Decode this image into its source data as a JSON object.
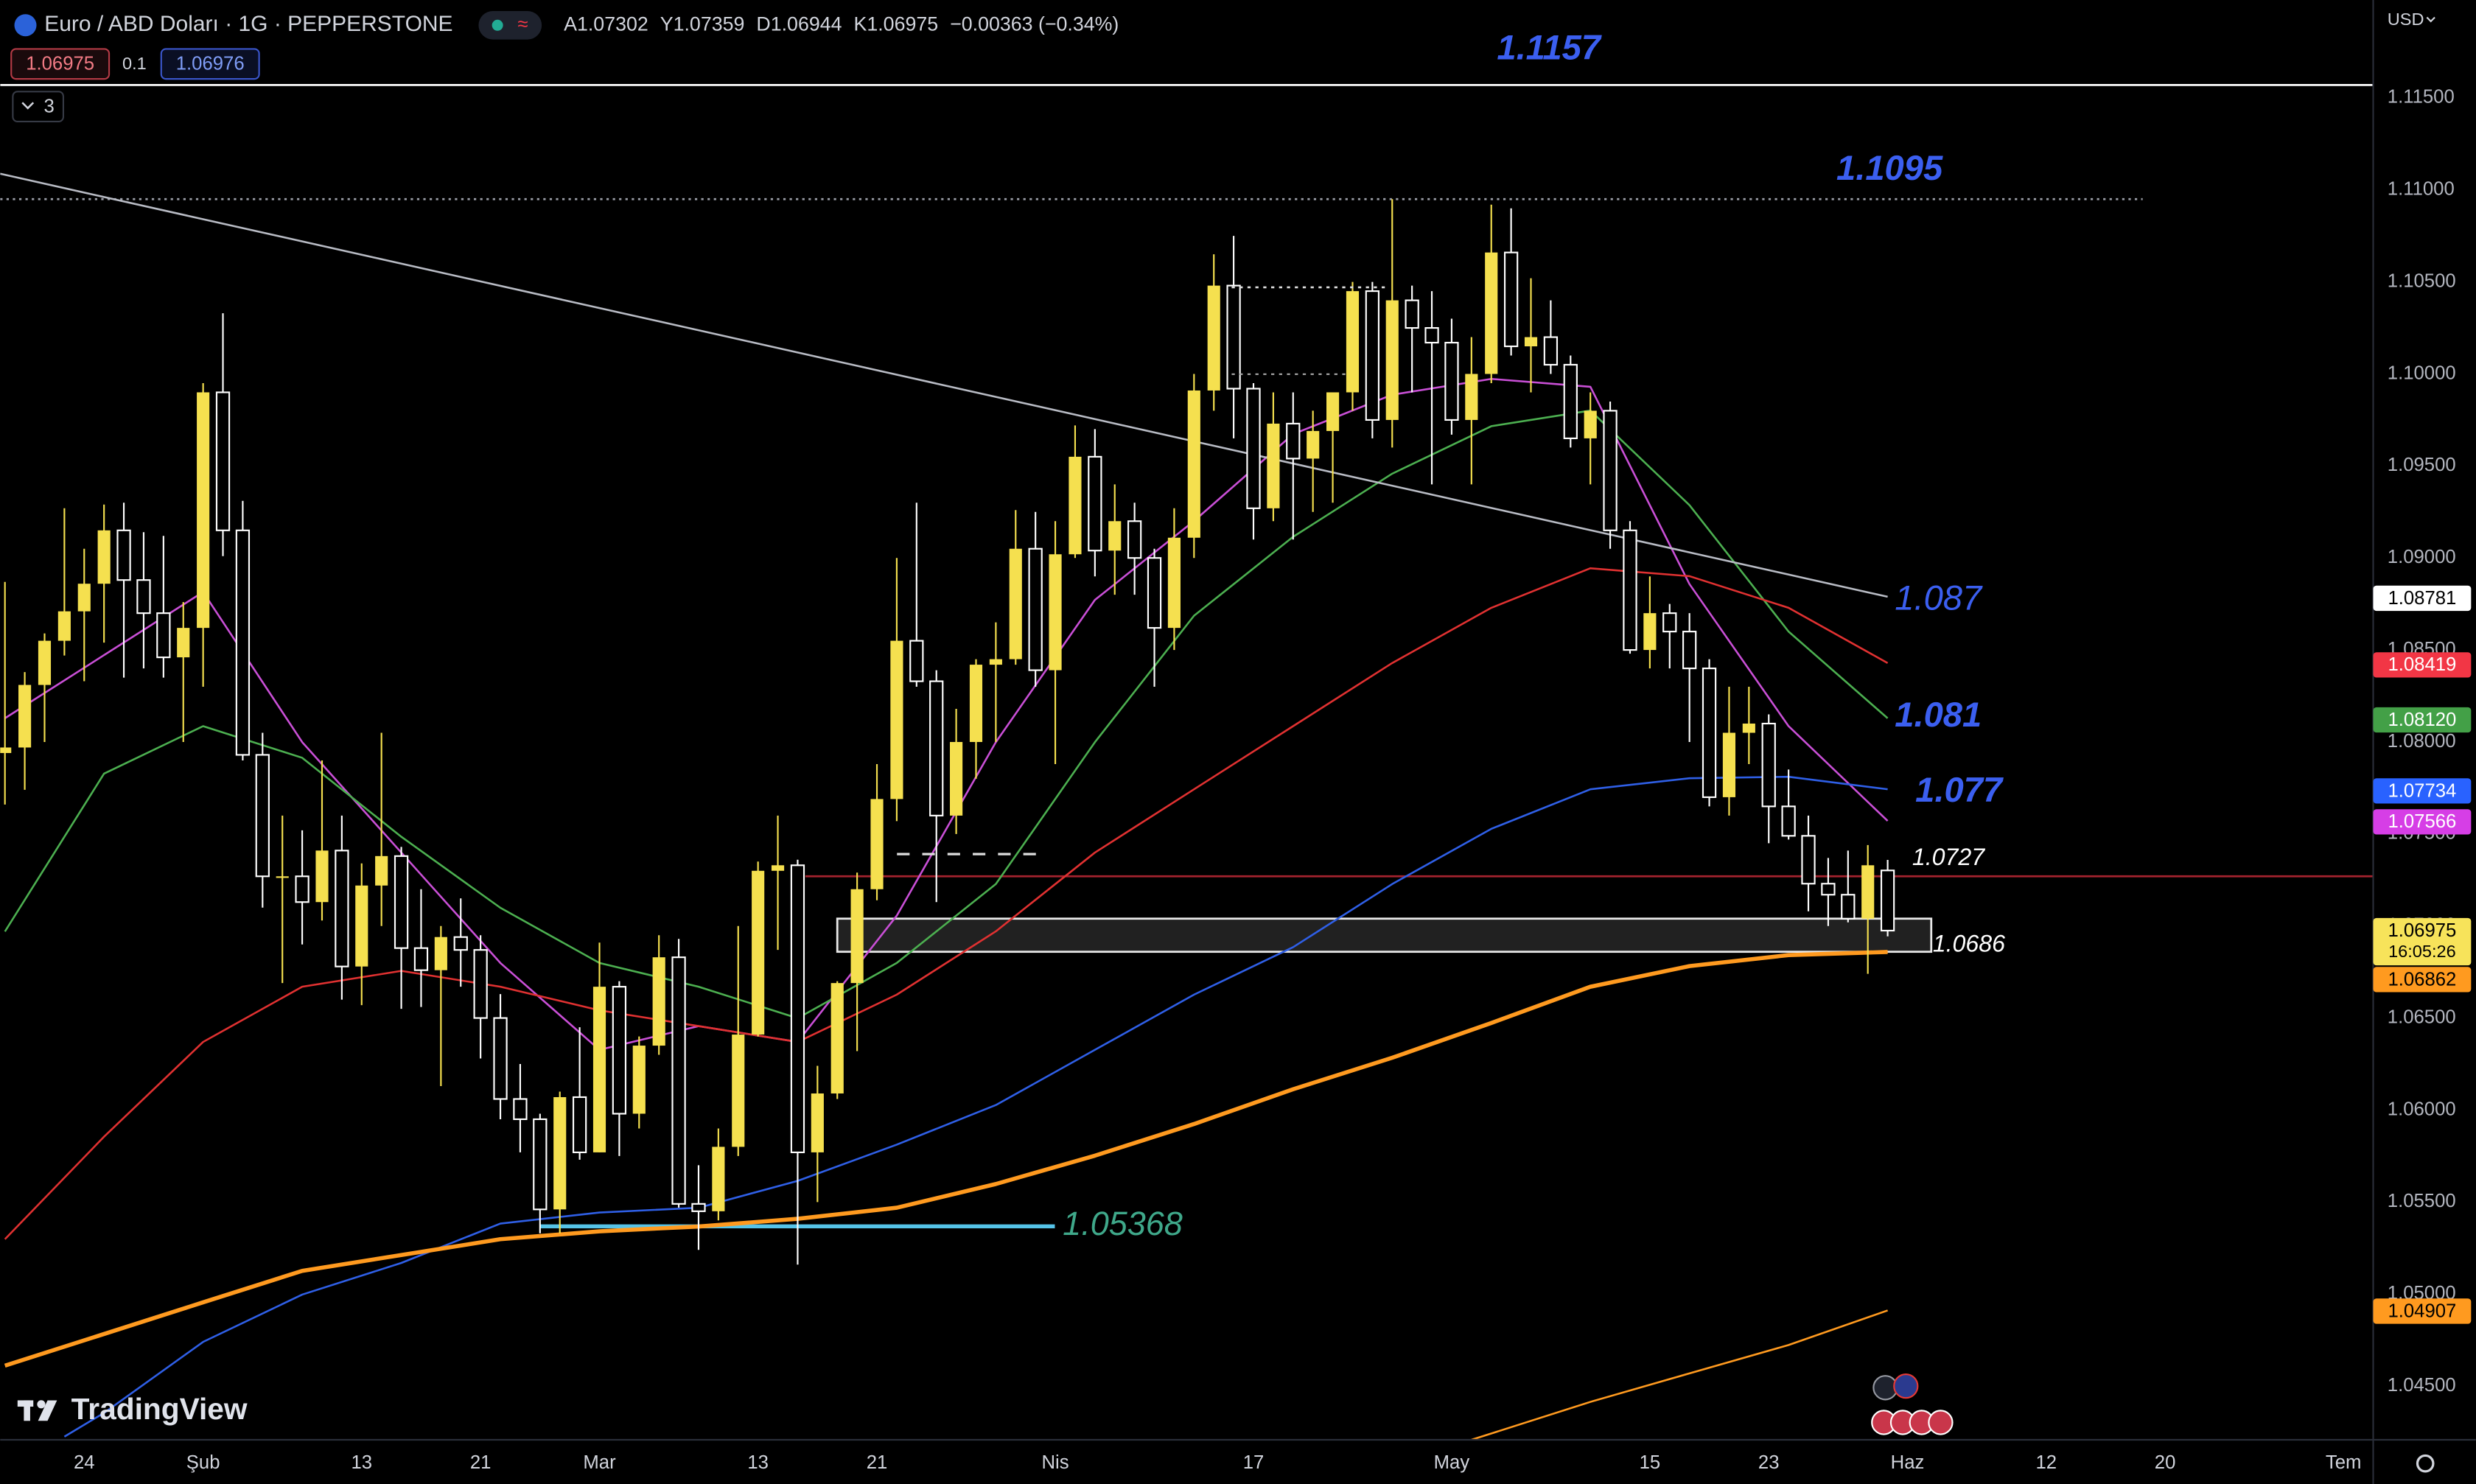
{
  "header": {
    "symbol": "Euro / ABD Doları · 1G · PEPPERSTONE",
    "ohlc": [
      {
        "key": "A",
        "value": 1.07302
      },
      {
        "key": "Y",
        "value": 1.07359
      },
      {
        "key": "D",
        "value": 1.06944
      },
      {
        "key": "K",
        "value": 1.06975
      }
    ],
    "change": "−0.00363 (−0.34%)",
    "sell": 1.06975,
    "spread": 0.1,
    "buy": 1.06976,
    "indicators": 3,
    "currency": "USD",
    "logo": "TradingView",
    "countdown": "16:05:26"
  },
  "chart_data": {
    "type": "candlestick",
    "up_color": "#f5e04f",
    "down_color": "#ffffff",
    "xlim": [
      -0.24,
      119.5
    ],
    "ylim": [
      1.04208,
      1.12032
    ],
    "x": [
      0,
      1,
      2,
      3,
      4,
      5,
      6,
      7,
      8,
      9,
      10,
      11,
      12,
      13,
      14,
      15,
      16,
      17,
      18,
      19,
      20,
      21,
      22,
      23,
      24,
      25,
      26,
      27,
      28,
      29,
      30,
      31,
      32,
      33,
      34,
      35,
      36,
      37,
      38,
      39,
      40,
      41,
      42,
      43,
      44,
      45,
      46,
      47,
      48,
      49,
      50,
      51,
      52,
      53,
      54,
      55,
      56,
      57,
      58,
      59,
      60,
      61,
      62,
      63,
      64,
      65,
      66,
      67,
      68,
      69,
      70,
      71,
      72,
      73,
      74,
      75,
      76,
      77,
      78,
      79,
      80,
      81,
      82,
      83,
      84,
      85,
      86,
      87,
      88,
      89,
      90,
      91,
      92,
      93,
      94,
      95
    ],
    "open": [
      1.0794,
      1.0797,
      1.0831,
      1.0855,
      1.0871,
      1.0886,
      1.0915,
      1.0888,
      1.087,
      1.0846,
      1.0862,
      1.099,
      1.0915,
      1.0793,
      1.0727,
      1.0727,
      1.0713,
      1.0741,
      1.0678,
      1.0722,
      1.0738,
      1.0688,
      1.0676,
      1.0694,
      1.0687,
      1.065,
      1.0606,
      1.0595,
      1.0546,
      1.0607,
      1.0577,
      1.0667,
      1.0598,
      1.0635,
      1.0683,
      1.0549,
      1.0545,
      1.058,
      1.0641,
      1.073,
      1.0733,
      1.0577,
      1.0609,
      1.0669,
      1.072,
      1.0769,
      1.0855,
      1.0833,
      1.076,
      1.08,
      1.0842,
      1.0845,
      1.0905,
      1.0839,
      1.0902,
      1.0955,
      1.0904,
      1.092,
      1.09,
      1.0862,
      1.0911,
      1.0991,
      1.1048,
      1.0992,
      1.0927,
      1.0973,
      1.0954,
      1.0969,
      1.099,
      1.1045,
      1.0975,
      1.104,
      1.1025,
      1.1017,
      1.0975,
      1.1,
      1.1066,
      1.1015,
      1.102,
      1.1005,
      1.0965,
      1.098,
      1.0915,
      1.085,
      1.087,
      1.086,
      1.084,
      1.077,
      1.0805,
      1.081,
      1.0765,
      1.0749,
      1.0723,
      1.0717,
      1.0704,
      1.07302
    ],
    "high": [
      1.0887,
      1.0838,
      1.0859,
      1.0927,
      1.0905,
      1.0929,
      1.093,
      1.0914,
      1.0912,
      1.0876,
      1.0995,
      1.1033,
      1.0931,
      1.0805,
      1.076,
      1.0752,
      1.079,
      1.076,
      1.0734,
      1.0805,
      1.0743,
      1.072,
      1.07,
      1.0715,
      1.0695,
      1.0663,
      1.0625,
      1.0598,
      1.061,
      1.0645,
      1.0691,
      1.067,
      1.064,
      1.0695,
      1.0693,
      1.057,
      1.059,
      1.07,
      1.0735,
      1.076,
      1.0736,
      1.0624,
      1.067,
      1.0729,
      1.0788,
      1.09,
      1.093,
      1.0839,
      1.0818,
      1.0845,
      1.0865,
      1.0926,
      1.0925,
      1.092,
      1.0972,
      1.097,
      1.094,
      1.093,
      1.0905,
      1.0927,
      1.1,
      1.1065,
      1.1075,
      1.0995,
      1.099,
      1.099,
      1.098,
      1.099,
      1.105,
      1.105,
      1.1095,
      1.1048,
      1.1045,
      1.103,
      1.102,
      1.1092,
      1.109,
      1.1052,
      1.104,
      1.101,
      1.099,
      1.0985,
      1.092,
      1.089,
      1.0875,
      1.087,
      1.0845,
      1.083,
      1.083,
      1.0815,
      1.0785,
      1.076,
      1.0737,
      1.0741,
      1.0744,
      1.07359
    ],
    "low": [
      1.0766,
      1.0774,
      1.08,
      1.0847,
      1.0833,
      1.0854,
      1.0835,
      1.084,
      1.0835,
      1.08,
      1.083,
      1.0901,
      1.079,
      1.071,
      1.0669,
      1.069,
      1.0703,
      1.066,
      1.0657,
      1.07,
      1.0655,
      1.0656,
      1.0613,
      1.0667,
      1.0628,
      1.0595,
      1.0577,
      1.0533,
      1.0533,
      1.0573,
      1.0577,
      1.0575,
      1.059,
      1.063,
      1.0547,
      1.0524,
      1.054,
      1.0575,
      1.064,
      1.0687,
      1.0516,
      1.055,
      1.0606,
      1.0632,
      1.0714,
      1.0757,
      1.083,
      1.0713,
      1.075,
      1.078,
      1.08,
      1.0842,
      1.083,
      1.0788,
      1.09,
      1.089,
      1.088,
      1.088,
      1.083,
      1.085,
      1.09,
      1.098,
      1.0965,
      1.091,
      1.092,
      1.091,
      1.0925,
      1.093,
      1.098,
      1.0965,
      1.096,
      1.099,
      1.094,
      1.0967,
      1.094,
      1.0995,
      1.101,
      1.099,
      1.1,
      1.096,
      1.094,
      1.0905,
      1.0848,
      1.084,
      1.084,
      1.08,
      1.0765,
      1.076,
      1.0788,
      1.0745,
      1.0747,
      1.0708,
      1.07,
      1.0702,
      1.0674,
      1.06944
    ],
    "close": [
      1.0797,
      1.0831,
      1.0855,
      1.0871,
      1.0886,
      1.0915,
      1.0888,
      1.087,
      1.0846,
      1.0862,
      1.099,
      1.0915,
      1.0793,
      1.0727,
      1.0727,
      1.0713,
      1.0741,
      1.0678,
      1.0722,
      1.0738,
      1.0688,
      1.0676,
      1.0694,
      1.0687,
      1.065,
      1.0606,
      1.0595,
      1.0546,
      1.0607,
      1.0577,
      1.0667,
      1.0598,
      1.0635,
      1.0683,
      1.0549,
      1.0545,
      1.058,
      1.0641,
      1.073,
      1.0733,
      1.0577,
      1.0609,
      1.0669,
      1.072,
      1.0769,
      1.0855,
      1.0833,
      1.076,
      1.08,
      1.0842,
      1.0845,
      1.0905,
      1.0839,
      1.0902,
      1.0955,
      1.0904,
      1.092,
      1.09,
      1.0862,
      1.0911,
      1.0991,
      1.1048,
      1.0992,
      1.0927,
      1.0973,
      1.0954,
      1.0969,
      1.099,
      1.1045,
      1.0975,
      1.104,
      1.1025,
      1.1017,
      1.0975,
      1.1,
      1.1066,
      1.1015,
      1.102,
      1.1005,
      1.0965,
      1.098,
      1.0915,
      1.085,
      1.087,
      1.086,
      1.084,
      1.077,
      1.0805,
      1.081,
      1.0765,
      1.0749,
      1.0723,
      1.0717,
      1.0704,
      1.0733,
      1.06975
    ],
    "lines": [
      {
        "color": "#c94fd6",
        "width": 1.2,
        "x": [
          0,
          5,
          10,
          15,
          20,
          25,
          30,
          35,
          40,
          45,
          50,
          55,
          60,
          65,
          70,
          75,
          80,
          85,
          90,
          95
        ],
        "values": [
          1.08129,
          1.08472,
          1.08815,
          1.07999,
          1.07399,
          1.06799,
          1.06327,
          1.06456,
          1.0637,
          1.07056,
          1.07999,
          1.08772,
          1.09201,
          1.09673,
          1.09887,
          1.09973,
          1.0993,
          1.08858,
          1.08086,
          1.07571
        ]
      },
      {
        "color": "#4caf50",
        "width": 1.2,
        "x": [
          0,
          5,
          10,
          15,
          20,
          25,
          30,
          35,
          40,
          45,
          50,
          55,
          60,
          65,
          70,
          75,
          80,
          85,
          90,
          95
        ],
        "values": [
          1.0697,
          1.07828,
          1.08086,
          1.07914,
          1.07485,
          1.07099,
          1.06799,
          1.0667,
          1.06499,
          1.06799,
          1.07228,
          1.07999,
          1.08686,
          1.09115,
          1.09458,
          1.09716,
          1.09801,
          1.09287,
          1.086,
          1.08129
        ]
      },
      {
        "color": "#e03131",
        "width": 1.2,
        "x": [
          0,
          5,
          10,
          15,
          20,
          25,
          30,
          35,
          40,
          45,
          50,
          55,
          60,
          65,
          70,
          75,
          80,
          85,
          90,
          95
        ],
        "values": [
          1.05298,
          1.05855,
          1.0637,
          1.0667,
          1.06756,
          1.0667,
          1.06542,
          1.06456,
          1.0637,
          1.06627,
          1.06971,
          1.07399,
          1.07743,
          1.08086,
          1.08429,
          1.08729,
          1.08944,
          1.08901,
          1.08729,
          1.08429
        ]
      },
      {
        "color": "#2f5fe6",
        "width": 1.2,
        "x": [
          3,
          5,
          10,
          15,
          20,
          25,
          30,
          35,
          40,
          45,
          50,
          55,
          60,
          65,
          70,
          75,
          80,
          85,
          90,
          95
        ],
        "values": [
          1.04225,
          1.04354,
          1.0474,
          1.04997,
          1.05169,
          1.05383,
          1.05443,
          1.05469,
          1.05615,
          1.05812,
          1.06027,
          1.06327,
          1.06627,
          1.06885,
          1.07228,
          1.07528,
          1.07743,
          1.07803,
          1.07811,
          1.07743
        ]
      },
      {
        "color": "#ff9a1f",
        "width": 2.6,
        "x": [
          0,
          5,
          10,
          15,
          20,
          25,
          30,
          35,
          40,
          45,
          50,
          55,
          60,
          65,
          70,
          75,
          80,
          85,
          90,
          95
        ],
        "values": [
          1.04611,
          1.04783,
          1.04955,
          1.05126,
          1.05212,
          1.05298,
          1.05341,
          1.05367,
          1.05409,
          1.05469,
          1.05598,
          1.05752,
          1.05924,
          1.06113,
          1.06284,
          1.06473,
          1.0667,
          1.06782,
          1.06842,
          1.06859
        ]
      },
      {
        "color": "#ff9a1f",
        "width": 1.2,
        "x": [
          74,
          80,
          85,
          90,
          95
        ],
        "values": [
          1.04208,
          1.04414,
          1.04569,
          1.04723,
          1.04911
        ]
      },
      {
        "color": "#b8bbc4",
        "width": 1.2,
        "x": [
          -0.24,
          95
        ],
        "values": [
          1.11088,
          1.08789
        ]
      }
    ],
    "annotations": [
      {
        "value": 1.1157,
        "color": "#3b5ff0",
        "bold": true,
        "size": 22,
        "line": "solid",
        "line_color": "#ffffff"
      },
      {
        "value": 1.1095,
        "color": "#3b5ff0",
        "bold": true,
        "size": 22,
        "line": "dotted",
        "line_color": "#9a9da6"
      },
      {
        "value": 1.087,
        "color": "#3b5ff0",
        "bold": false,
        "size": 22
      },
      {
        "value": 1.081,
        "color": "#3b5ff0",
        "bold": true,
        "size": 22
      },
      {
        "value": 1.077,
        "color": "#3b5ff0",
        "bold": true,
        "size": 22
      },
      {
        "value": 1.0727,
        "color": "#ffffff",
        "bold": false,
        "size": 15,
        "line": "solid",
        "line_color": "#a3232e"
      },
      {
        "value": 1.0686,
        "color": "#ffffff",
        "bold": false,
        "size": 15
      },
      {
        "value": 1.05368,
        "color": "#3fa88a",
        "bold": false,
        "size": 21,
        "line": "solid",
        "line_color": "#55c3e8"
      }
    ],
    "zone": {
      "x": [
        42,
        97.2
      ],
      "top": 1.0704
    },
    "yticks": [
      {
        "value": 1.045,
        "label": "1.04500"
      },
      {
        "value": 1.05,
        "label": "1.05000"
      },
      {
        "value": 1.055,
        "label": "1.05500"
      },
      {
        "value": 1.06,
        "label": "1.06000"
      },
      {
        "value": 1.065,
        "label": "1.06500"
      },
      {
        "value": 1.07,
        "label": "1.07000"
      },
      {
        "value": 1.075,
        "label": "1.07500"
      },
      {
        "value": 1.08,
        "label": "1.08000"
      },
      {
        "value": 1.085,
        "label": "1.08500"
      },
      {
        "value": 1.09,
        "label": "1.09000"
      },
      {
        "value": 1.095,
        "label": "1.09500"
      },
      {
        "value": 1.1,
        "label": "1.10000"
      },
      {
        "value": 1.105,
        "label": "1.10500"
      },
      {
        "value": 1.11,
        "label": "1.11000"
      },
      {
        "value": 1.115,
        "label": "1.11500"
      }
    ],
    "xticks": [
      {
        "value": 4,
        "label": "24"
      },
      {
        "value": 10,
        "label": "Şub"
      },
      {
        "value": 18,
        "label": "13"
      },
      {
        "value": 24,
        "label": "21"
      },
      {
        "value": 30,
        "label": "Mar"
      },
      {
        "value": 38,
        "label": "13"
      },
      {
        "value": 44,
        "label": "21"
      },
      {
        "value": 53,
        "label": "Nis"
      },
      {
        "value": 63,
        "label": "17"
      },
      {
        "value": 73,
        "label": "May"
      },
      {
        "value": 83,
        "label": "15"
      },
      {
        "value": 89,
        "label": "23"
      },
      {
        "value": 96,
        "label": "Haz"
      },
      {
        "value": 103,
        "label": "12"
      },
      {
        "value": 109,
        "label": "20"
      },
      {
        "value": 118,
        "label": "Tem"
      }
    ],
    "price_labels": [
      {
        "value": 1.08781,
        "bg": "#ffffff",
        "fg": "#000000"
      },
      {
        "value": 1.08419,
        "bg": "#f23645",
        "fg": "#ffffff"
      },
      {
        "value": 1.0812,
        "label": "1.08120",
        "bg": "#43a047",
        "fg": "#ffffff"
      },
      {
        "value": 1.07734,
        "bg": "#2962ff",
        "fg": "#ffffff"
      },
      {
        "value": 1.07566,
        "bg": "#d63ee6",
        "fg": "#ffffff"
      },
      {
        "value": 1.06975,
        "bg": "#f7e35a",
        "fg": "#000000",
        "countdown": true
      },
      {
        "value": 1.06862,
        "bg": "#ff9a1f",
        "fg": "#000000"
      },
      {
        "value": 1.04907,
        "bg": "#ff9a1f",
        "fg": "#000000"
      }
    ]
  }
}
